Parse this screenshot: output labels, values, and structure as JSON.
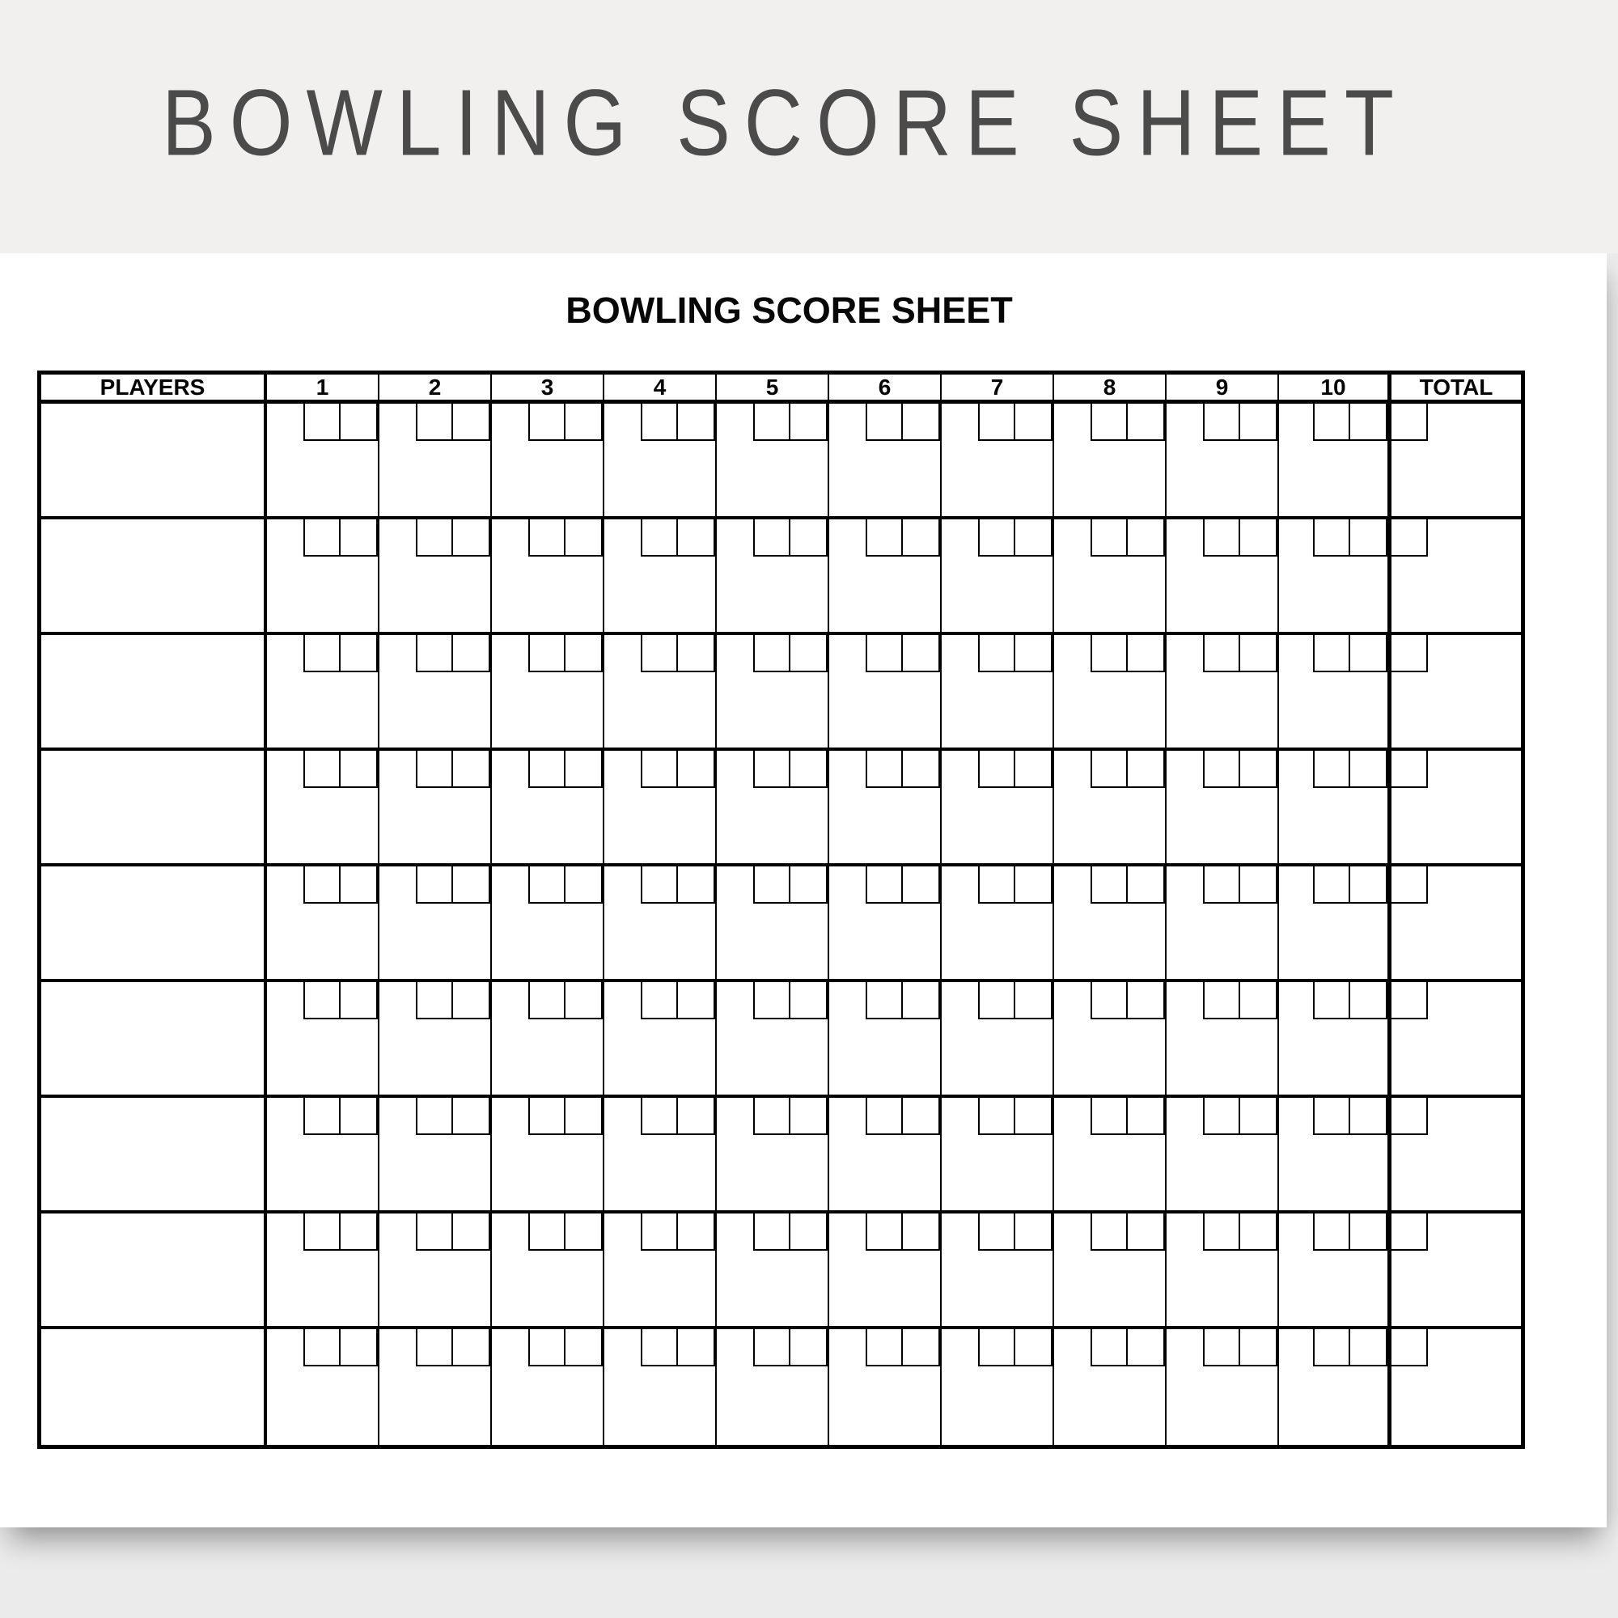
{
  "banner": {
    "title": "BOWLING SCORE SHEET"
  },
  "sheet": {
    "title": "BOWLING SCORE SHEET",
    "table": {
      "players_header": "PLAYERS",
      "frame_headers": [
        "1",
        "2",
        "3",
        "4",
        "5",
        "6",
        "7",
        "8",
        "9",
        "10"
      ],
      "total_header": "TOTAL",
      "player_rows": 9,
      "throw_boxes_per_frame": 2,
      "total_boxes_per_row": 1
    }
  },
  "colors": {
    "canvas_bg": "#ebebeb",
    "banner_bg": "#f1f0ee",
    "banner_text": "#4b4b4b",
    "page_bg": "#ffffff",
    "line": "#000000"
  }
}
